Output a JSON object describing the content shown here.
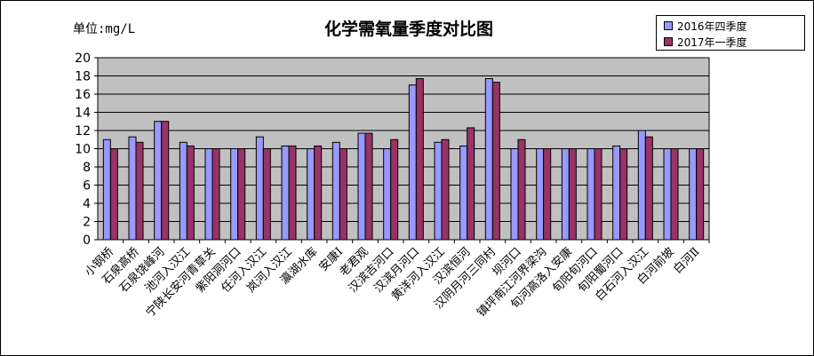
{
  "chart_data": {
    "type": "bar",
    "title": "化学需氧量季度对比图",
    "unit_label": "单位:mg/L",
    "ylim": [
      0,
      20
    ],
    "yticks": [
      0,
      2,
      4,
      6,
      8,
      10,
      12,
      14,
      16,
      18,
      20
    ],
    "grid": true,
    "legend_position": "top-right",
    "categories": [
      "小钢桥",
      "石泉高桥",
      "石泉饶峰河",
      "池河入汉江",
      "宁陕长安河青草关",
      "紫阳洞河口",
      "任河入汉江",
      "岚河入汉江",
      "瀛湖水库",
      "安康Ⅰ",
      "老君观",
      "汉滨吉河口",
      "汉滨月河口",
      "黄洋河入汉江",
      "汉滨恒河",
      "汉阴月河三同村",
      "坝河口",
      "镇坪南江河界梁沟",
      "旬河高洛入安康",
      "旬阳旬河口",
      "旬阳蜀河口",
      "白石河入汉江",
      "白河前坡",
      "白河Ⅱ"
    ],
    "series": [
      {
        "name": "2016年四季度",
        "color": "#9999ff",
        "values": [
          11,
          11.3,
          13,
          10.7,
          10,
          10,
          11.3,
          10.3,
          10,
          10.7,
          11.7,
          10,
          17,
          10.7,
          10.3,
          17.7,
          10,
          10,
          10,
          10,
          10.3,
          12,
          10,
          10
        ]
      },
      {
        "name": "2017年一季度",
        "color": "#993366",
        "values": [
          10,
          10.7,
          13,
          10.3,
          10,
          10,
          10,
          10.3,
          10.3,
          10,
          11.7,
          11,
          17.7,
          11,
          12.3,
          17.3,
          11,
          10,
          10,
          10,
          10,
          11.3,
          10,
          10
        ]
      }
    ]
  }
}
